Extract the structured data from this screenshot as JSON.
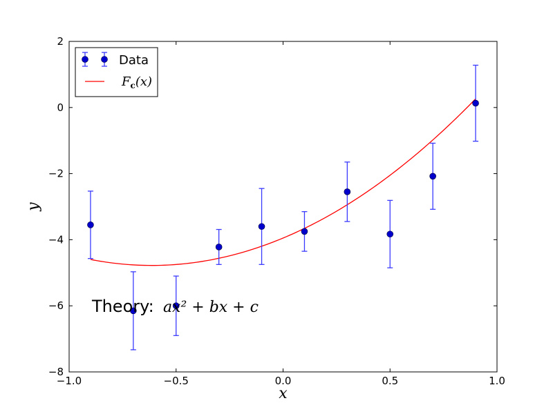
{
  "chart_data": {
    "type": "scatter",
    "xlabel": "x",
    "ylabel": "y",
    "xlim": [
      -1.0,
      1.0
    ],
    "ylim": [
      -8,
      2
    ],
    "x_ticks": [
      "−1.0",
      "−0.5",
      "0.0",
      "0.5",
      "1.0"
    ],
    "x_tick_values": [
      -1.0,
      -0.5,
      0.0,
      0.5,
      1.0
    ],
    "y_ticks": [
      "−8",
      "−6",
      "−4",
      "−2",
      "0",
      "2"
    ],
    "y_tick_values": [
      -8,
      -6,
      -4,
      -2,
      0,
      2
    ],
    "grid": false,
    "legend_position": "top-left",
    "series": [
      {
        "name": "Data",
        "kind": "errorbar",
        "color": "#0000cc",
        "errorbar_color": "#3a3aff",
        "x": [
          -0.9,
          -0.7,
          -0.5,
          -0.3,
          -0.1,
          0.1,
          0.3,
          0.5,
          0.7,
          0.9
        ],
        "y": [
          -3.55,
          -6.15,
          -6.0,
          -4.22,
          -3.6,
          -3.75,
          -2.55,
          -3.83,
          -2.08,
          0.13
        ],
        "yerr": [
          1.02,
          1.18,
          0.9,
          0.53,
          1.15,
          0.6,
          0.9,
          1.02,
          1.0,
          1.15
        ]
      },
      {
        "name": "F_c(x)",
        "kind": "line",
        "color": "#ff0000",
        "coefficients": {
          "a": 2.2,
          "b": 2.7,
          "c": -3.95
        },
        "x_range": [
          -0.9,
          0.9
        ]
      }
    ],
    "annotation": {
      "text": "Theory: ",
      "math": "ax² + bx + c",
      "x": -0.9,
      "y": -6.0
    }
  },
  "legend": {
    "data_label": "Data",
    "fit_label_main": "F",
    "fit_label_sub": "c",
    "fit_label_tail": "(x)"
  }
}
